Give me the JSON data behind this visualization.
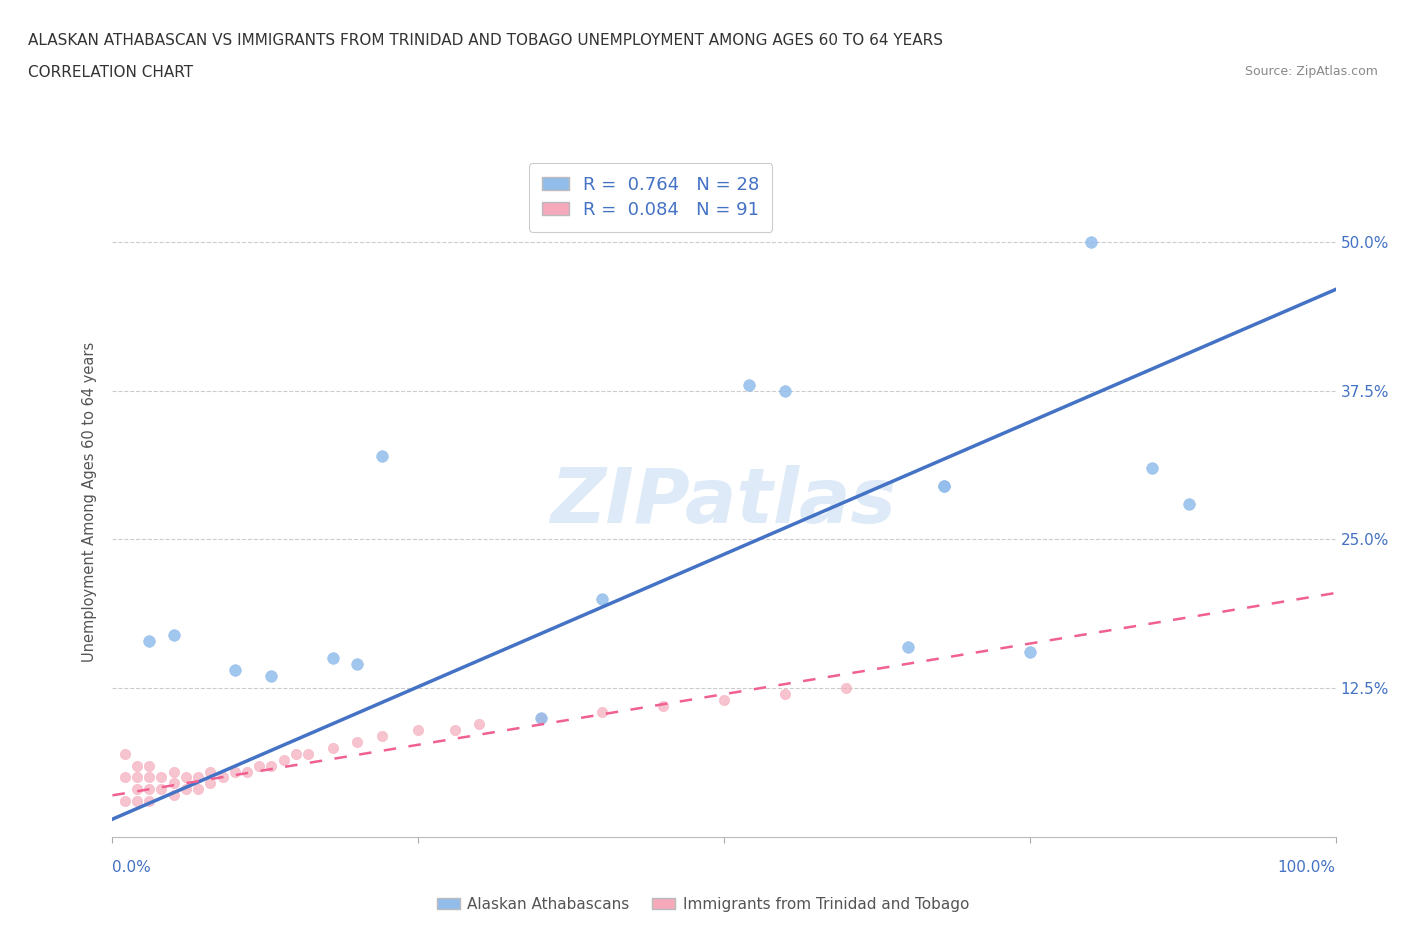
{
  "title_line1": "ALASKAN ATHABASCAN VS IMMIGRANTS FROM TRINIDAD AND TOBAGO UNEMPLOYMENT AMONG AGES 60 TO 64 YEARS",
  "title_line2": "CORRELATION CHART",
  "source_text": "Source: ZipAtlas.com",
  "ylabel": "Unemployment Among Ages 60 to 64 years",
  "legend_label1": "Alaskan Athabascans",
  "legend_label2": "Immigrants from Trinidad and Tobago",
  "R1": 0.764,
  "N1": 28,
  "R2": 0.084,
  "N2": 91,
  "color_blue": "#92BDEB",
  "color_pink": "#F4AABB",
  "color_blue_line": "#4472C4",
  "color_pink_line": "#F06090",
  "color_text_blue": "#4472C4",
  "watermark": "ZIPatlas",
  "xlim": [
    0,
    100
  ],
  "ylim": [
    0,
    56.25
  ],
  "ytick_values": [
    12.5,
    25.0,
    37.5,
    50.0
  ],
  "ytick_labels": [
    "12.5%",
    "25.0%",
    "37.5%",
    "50.0%"
  ],
  "blue_scatter_x": [
    3,
    5,
    10,
    13,
    18,
    20,
    22,
    35,
    40,
    52,
    55,
    65,
    68,
    68,
    75,
    80,
    85,
    88
  ],
  "blue_scatter_y": [
    16.5,
    17.0,
    14.0,
    13.5,
    15.0,
    14.5,
    32.0,
    10.0,
    20.0,
    38.0,
    37.5,
    16.0,
    29.5,
    29.5,
    15.5,
    50.0,
    31.0,
    28.0
  ],
  "pink_scatter_x": [
    1,
    1,
    1,
    2,
    2,
    2,
    2,
    3,
    3,
    3,
    3,
    4,
    4,
    5,
    5,
    5,
    6,
    6,
    7,
    7,
    8,
    8,
    9,
    10,
    11,
    12,
    13,
    14,
    15,
    16,
    18,
    20,
    22,
    25,
    28,
    30,
    35,
    40,
    45,
    50,
    55,
    60
  ],
  "pink_scatter_y": [
    3.0,
    5.0,
    7.0,
    3.0,
    4.0,
    5.0,
    6.0,
    3.0,
    4.0,
    5.0,
    6.0,
    4.0,
    5.0,
    3.5,
    4.5,
    5.5,
    4.0,
    5.0,
    4.0,
    5.0,
    4.5,
    5.5,
    5.0,
    5.5,
    5.5,
    6.0,
    6.0,
    6.5,
    7.0,
    7.0,
    7.5,
    8.0,
    8.5,
    9.0,
    9.0,
    9.5,
    10.0,
    10.5,
    11.0,
    11.5,
    12.0,
    12.5
  ],
  "blue_line_x": [
    0,
    100
  ],
  "blue_line_y": [
    1.5,
    46.0
  ],
  "pink_line_x": [
    0,
    100
  ],
  "pink_line_y": [
    3.5,
    20.5
  ]
}
